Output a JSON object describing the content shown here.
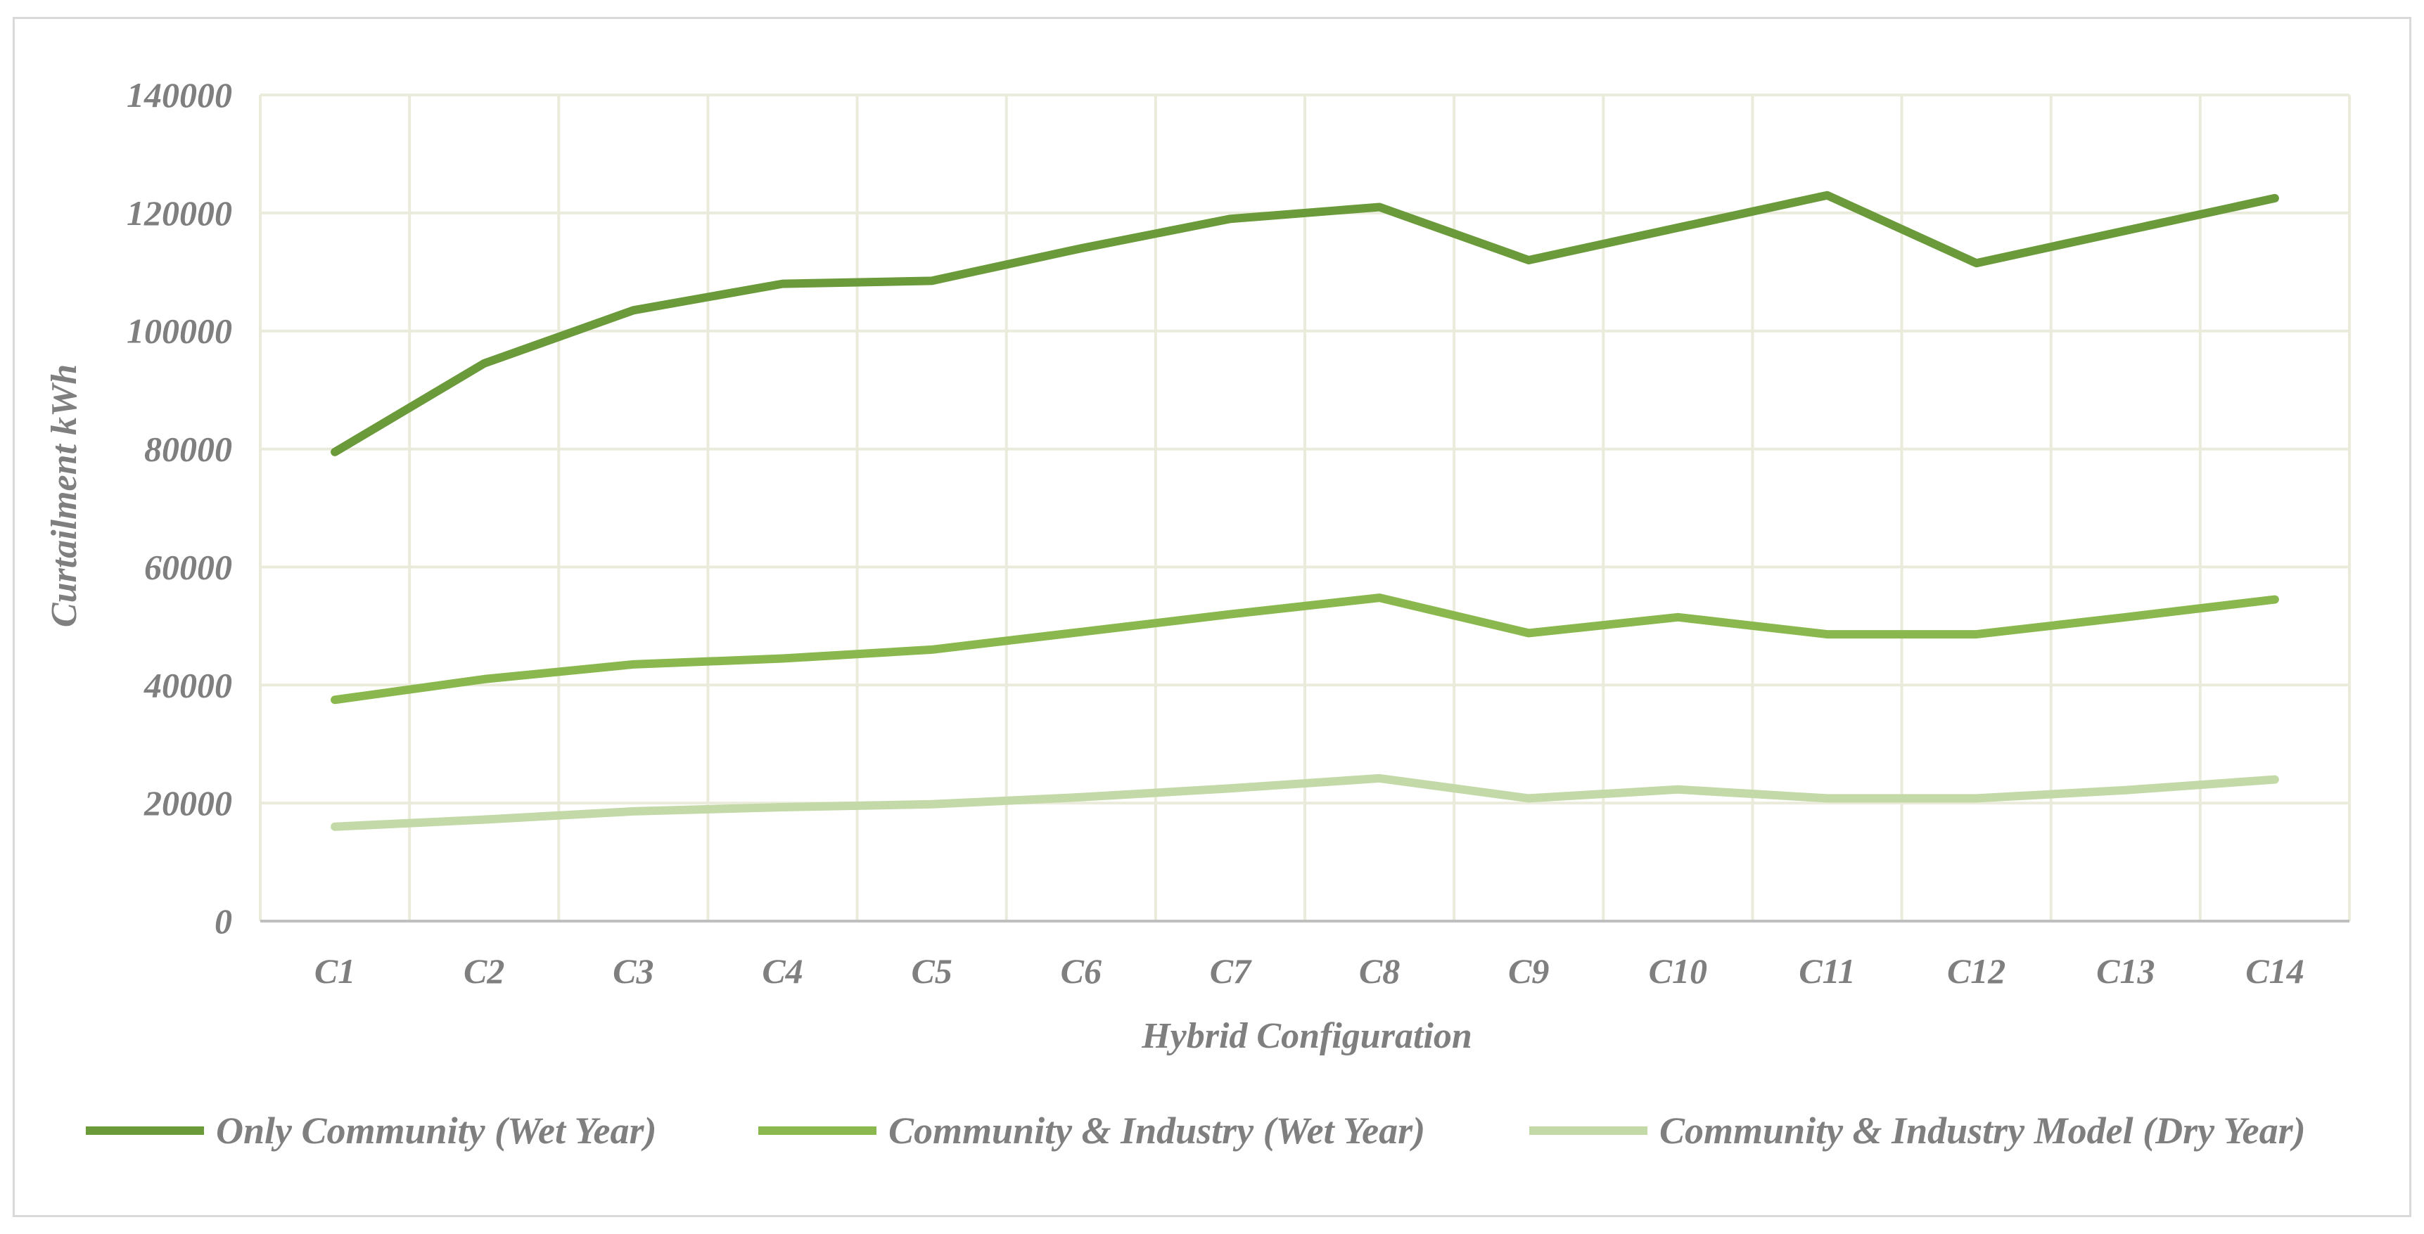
{
  "chart_data": {
    "type": "line",
    "title": "",
    "xlabel": "Hybrid Configuration",
    "ylabel": "Curtailment kWh",
    "ylim": [
      0,
      140000
    ],
    "yticks": [
      "0",
      "20000",
      "40000",
      "60000",
      "80000",
      "100000",
      "120000",
      "140000"
    ],
    "grid": true,
    "legend_position": "bottom",
    "categories": [
      "C1",
      "C2",
      "C3",
      "C4",
      "C5",
      "C6",
      "C7",
      "C8",
      "C9",
      "C10",
      "C11",
      "C12",
      "C13",
      "C14"
    ],
    "series": [
      {
        "name": "Only Community (Wet Year)",
        "color": "#6a9a3a",
        "values": [
          79500,
          94500,
          103500,
          108000,
          108500,
          114000,
          119000,
          121000,
          112000,
          117500,
          123000,
          111500,
          117000,
          122500
        ]
      },
      {
        "name": "Community & Industry (Wet Year)",
        "color": "#8ab84e",
        "values": [
          37500,
          41000,
          43500,
          44500,
          46000,
          49000,
          52000,
          54800,
          48800,
          51500,
          48600,
          48600,
          51500,
          54500
        ]
      },
      {
        "name": "Community & Industry Model (Dry Year)",
        "color": "#c3d9a8",
        "values": [
          16000,
          17200,
          18600,
          19300,
          19800,
          21000,
          22500,
          24200,
          20800,
          22300,
          20800,
          20800,
          22200,
          24000
        ]
      }
    ]
  }
}
